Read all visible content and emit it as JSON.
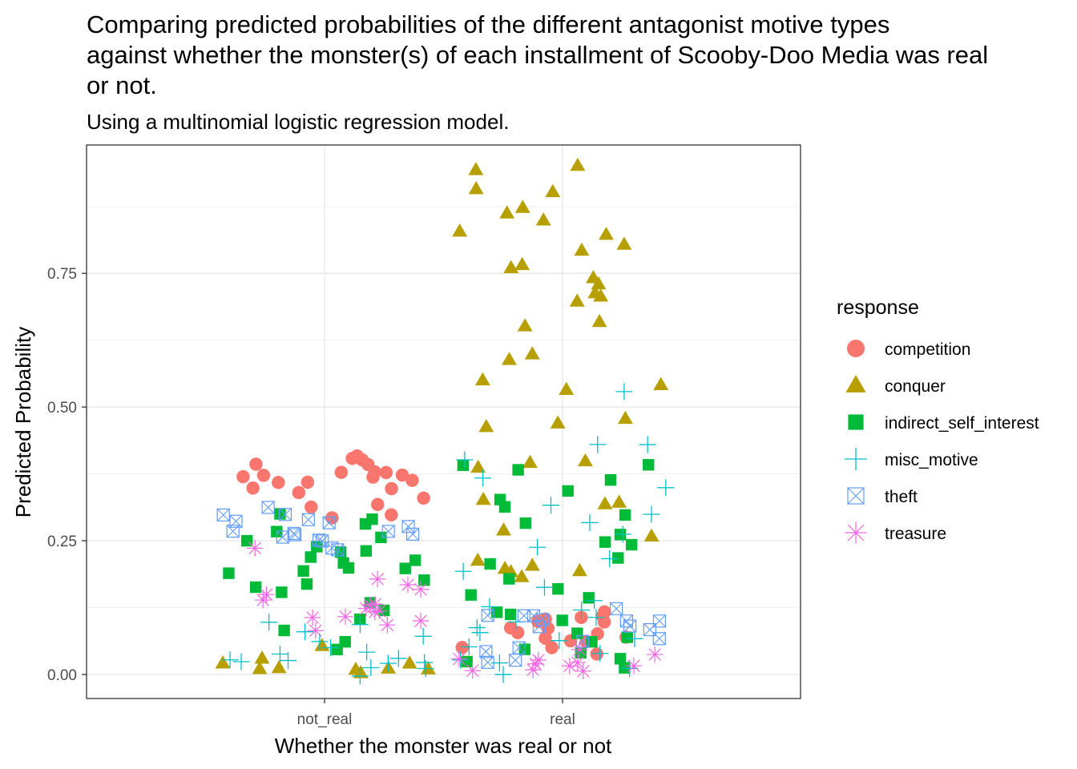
{
  "chart_data": {
    "type": "scatter",
    "title": "Comparing predicted probabilities of the different antagonist motive types\nagainst whether the monster(s) of each installment of Scooby-Doo Media was real\nor not.",
    "subtitle": "Using a multinomial logistic regression model.",
    "xlabel": "Whether the monster was real or not",
    "ylabel": "Predicted Probability",
    "categories": [
      "not_real",
      "real"
    ],
    "yticks": [
      0.0,
      0.25,
      0.5,
      0.75
    ],
    "ytick_labels": [
      "0.00",
      "0.25",
      "0.50",
      "0.75"
    ],
    "ylim": [
      -0.045,
      0.99
    ],
    "grid": true,
    "jitter": true,
    "legend": {
      "title": "response",
      "position": "right"
    },
    "series": [
      {
        "name": "competition",
        "color": "#F8766D",
        "shape": "circle",
        "points": {
          "not_real": [
            0.41,
            0.4,
            0.4,
            0.39,
            0.39,
            0.38,
            0.38,
            0.38,
            0.37,
            0.37,
            0.37,
            0.37,
            0.36,
            0.36,
            0.36,
            0.35,
            0.35,
            0.34,
            0.33,
            0.32,
            0.31,
            0.3,
            0.29
          ],
          "real": [
            0.12,
            0.11,
            0.11,
            0.1,
            0.1,
            0.1,
            0.09,
            0.09,
            0.08,
            0.08,
            0.07,
            0.07,
            0.06,
            0.06,
            0.05,
            0.05,
            0.04
          ]
        }
      },
      {
        "name": "conquer",
        "color": "#B79F00",
        "shape": "triangle",
        "points": {
          "not_real": [
            0.05,
            0.03,
            0.02,
            0.02,
            0.01,
            0.01,
            0.01,
            0.01,
            0.01,
            0.0
          ],
          "real": [
            0.95,
            0.94,
            0.91,
            0.9,
            0.87,
            0.86,
            0.85,
            0.83,
            0.82,
            0.8,
            0.79,
            0.77,
            0.76,
            0.74,
            0.73,
            0.71,
            0.71,
            0.7,
            0.66,
            0.65,
            0.6,
            0.59,
            0.55,
            0.54,
            0.53,
            0.48,
            0.47,
            0.46,
            0.4,
            0.4,
            0.39,
            0.33,
            0.32,
            0.32,
            0.27,
            0.26,
            0.21,
            0.2,
            0.2,
            0.19,
            0.19,
            0.18
          ]
        }
      },
      {
        "name": "indirect_self_interest",
        "color": "#00BA38",
        "shape": "square",
        "points": {
          "not_real": [
            0.3,
            0.29,
            0.28,
            0.27,
            0.26,
            0.25,
            0.24,
            0.23,
            0.23,
            0.22,
            0.21,
            0.21,
            0.2,
            0.2,
            0.19,
            0.19,
            0.18,
            0.17,
            0.16,
            0.15,
            0.13,
            0.12,
            0.1,
            0.08,
            0.06,
            0.05
          ],
          "real": [
            0.39,
            0.39,
            0.38,
            0.36,
            0.34,
            0.33,
            0.31,
            0.3,
            0.28,
            0.26,
            0.25,
            0.24,
            0.22,
            0.21,
            0.18,
            0.16,
            0.15,
            0.14,
            0.12,
            0.11,
            0.1,
            0.08,
            0.07,
            0.06,
            0.05,
            0.04,
            0.03,
            0.02,
            0.01
          ]
        }
      },
      {
        "name": "misc_motive",
        "color": "#00BFC4",
        "shape": "plus",
        "points": {
          "not_real": [
            0.1,
            0.09,
            0.08,
            0.07,
            0.06,
            0.05,
            0.04,
            0.04,
            0.03,
            0.03,
            0.03,
            0.02,
            0.02,
            0.02,
            0.01,
            0.01,
            0.0
          ],
          "real": [
            0.53,
            0.43,
            0.43,
            0.4,
            0.37,
            0.35,
            0.32,
            0.3,
            0.28,
            0.26,
            0.24,
            0.22,
            0.19,
            0.16,
            0.14,
            0.13,
            0.12,
            0.11,
            0.1,
            0.09,
            0.08,
            0.07,
            0.06,
            0.05,
            0.04,
            0.03,
            0.02,
            0.01,
            0.0
          ]
        }
      },
      {
        "name": "theft",
        "color": "#619CFF",
        "shape": "square-cross",
        "points": {
          "not_real": [
            0.31,
            0.3,
            0.3,
            0.29,
            0.29,
            0.28,
            0.28,
            0.27,
            0.27,
            0.26,
            0.26,
            0.26,
            0.26,
            0.25,
            0.25,
            0.24,
            0.23
          ],
          "real": [
            0.12,
            0.11,
            0.11,
            0.11,
            0.1,
            0.1,
            0.1,
            0.09,
            0.09,
            0.08,
            0.07,
            0.06,
            0.05,
            0.04,
            0.03,
            0.02
          ]
        }
      },
      {
        "name": "treasure",
        "color": "#F564E3",
        "shape": "asterisk",
        "points": {
          "not_real": [
            0.24,
            0.18,
            0.17,
            0.16,
            0.15,
            0.14,
            0.13,
            0.13,
            0.12,
            0.12,
            0.12,
            0.11,
            0.11,
            0.1,
            0.09,
            0.08
          ],
          "real": [
            0.05,
            0.04,
            0.03,
            0.03,
            0.02,
            0.02,
            0.02,
            0.02,
            0.01,
            0.01,
            0.01
          ]
        }
      }
    ]
  }
}
